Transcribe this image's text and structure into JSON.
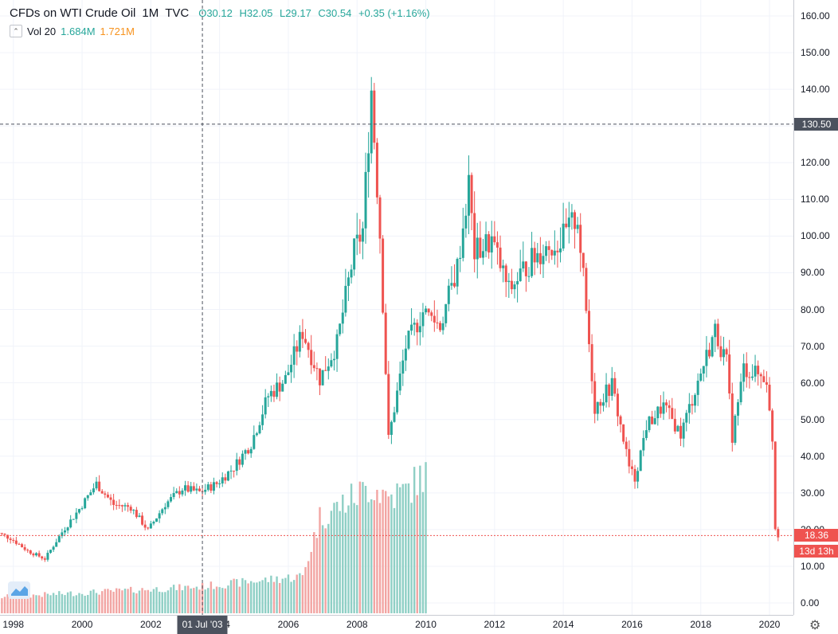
{
  "legend": {
    "title": "CFDs on WTI Crude Oil",
    "interval": "1M",
    "source": "TVC",
    "open": "O30.12",
    "high": "H32.05",
    "low": "L29.17",
    "close": "C30.54",
    "change": "+0.35 (+1.16%)",
    "volume_label": "Vol 20",
    "volume_value": "1.684M",
    "volume_ma": "1.721M"
  },
  "axis": {
    "price_ticks": [
      "0.00",
      "10.00",
      "20.00",
      "30.00",
      "40.00",
      "50.00",
      "60.00",
      "70.00",
      "80.00",
      "90.00",
      "100.00",
      "110.00",
      "120.00",
      "130.00",
      "140.00",
      "150.00",
      "160.00"
    ],
    "year_ticks": [
      "1998",
      "2000",
      "2002",
      "2004",
      "2006",
      "2008",
      "2010",
      "2012",
      "2014",
      "2016",
      "2018",
      "2020"
    ]
  },
  "crosshair": {
    "price_label": "130.50",
    "time_label": "01 Jul '03"
  },
  "last_price": {
    "label": "18.36",
    "countdown": "13d 13h"
  },
  "colors": {
    "up": "#26a69a",
    "down": "#ef5350",
    "vol_up": "#8fcfc5",
    "vol_down": "#f2a5a3",
    "crosshair": "#4c525e",
    "last_price_line": "#ef5350"
  },
  "chart_data": {
    "type": "candlestick",
    "title": "CFDs on WTI Crude Oil",
    "interval": "1M",
    "ylim": [
      0,
      160
    ],
    "xlim": [
      "1997-05",
      "2020-06"
    ],
    "grid": true,
    "series": [
      {
        "name": "close",
        "x": [
          "1997-06",
          "1997-12",
          "1998-06",
          "1998-12",
          "1999-06",
          "1999-12",
          "2000-06",
          "2000-12",
          "2001-06",
          "2001-12",
          "2002-06",
          "2002-12",
          "2003-06",
          "2003-12",
          "2004-06",
          "2004-12",
          "2005-06",
          "2005-12",
          "2006-06",
          "2006-12",
          "2007-06",
          "2007-12",
          "2008-03",
          "2008-06",
          "2008-09",
          "2008-12",
          "2009-06",
          "2009-12",
          "2010-06",
          "2010-12",
          "2011-04",
          "2011-06",
          "2011-12",
          "2012-06",
          "2012-12",
          "2013-06",
          "2013-12",
          "2014-06",
          "2014-12",
          "2015-06",
          "2015-12",
          "2016-02",
          "2016-06",
          "2016-12",
          "2017-06",
          "2017-12",
          "2018-06",
          "2018-10",
          "2018-12",
          "2019-04",
          "2019-12",
          "2020-01",
          "2020-02",
          "2020-03",
          "2020-04"
        ],
        "values": [
          19.5,
          17.7,
          14.2,
          12.0,
          19.3,
          25.6,
          32.5,
          26.8,
          26.1,
          19.8,
          26.9,
          31.2,
          30.2,
          32.5,
          37.0,
          43.5,
          56.5,
          61.0,
          73.9,
          61.1,
          70.7,
          95.9,
          101.6,
          140.0,
          100.6,
          44.6,
          69.9,
          79.4,
          75.6,
          91.4,
          113.9,
          95.4,
          98.8,
          84.9,
          91.8,
          96.6,
          98.4,
          105.4,
          53.3,
          59.5,
          37.0,
          33.8,
          48.3,
          53.7,
          46.0,
          60.4,
          74.2,
          65.3,
          45.4,
          63.9,
          61.1,
          51.6,
          44.8,
          20.5,
          18.4
        ]
      }
    ],
    "volume": {
      "name": "Vol",
      "x": [
        "1997-06",
        "2000-06",
        "2003-06",
        "2006-06",
        "2006-12",
        "2007-06",
        "2008-06",
        "2008-12",
        "2009-06",
        "2009-12"
      ],
      "values": [
        0.3,
        0.4,
        0.5,
        0.7,
        1.8,
        2.0,
        2.4,
        2.2,
        2.3,
        2.6
      ]
    }
  }
}
